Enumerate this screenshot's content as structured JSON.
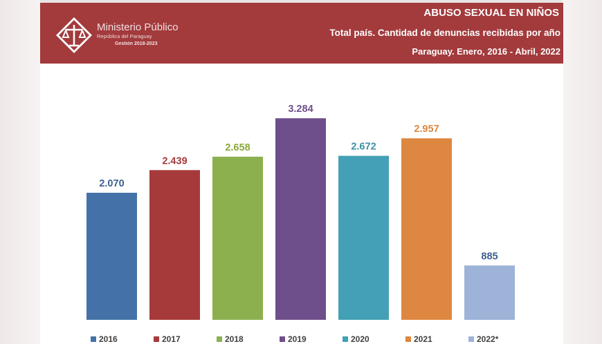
{
  "header": {
    "org_name": "Ministerio Público",
    "org_sub": "República del Paraguay",
    "org_term": "Gestión 2018-2023",
    "title": "ABUSO SEXUAL EN NIÑOS",
    "subtitle": "Total país. Cantidad de denuncias recibidas por año",
    "note": "Paraguay. Enero, 2016 - Abril, 2022",
    "colors": {
      "band": "#a33a3c"
    },
    "logo_icon": "scales-of-justice-icon"
  },
  "chart_data": {
    "type": "bar",
    "categories": [
      "2016",
      "2017",
      "2018",
      "2019",
      "2020",
      "2021",
      "2022*"
    ],
    "values": [
      2070,
      2439,
      2658,
      3284,
      2672,
      2957,
      885
    ],
    "value_labels": [
      "2.070",
      "2.439",
      "2.658",
      "3.284",
      "2.672",
      "2.957",
      "885"
    ],
    "colors": [
      "#4472a8",
      "#a63a3b",
      "#8db04f",
      "#6e4f8b",
      "#44a0b6",
      "#dd8740",
      "#9db3d8"
    ],
    "label_colors": [
      "#3c5f91",
      "#a63a3b",
      "#8aa83a",
      "#6e4f8b",
      "#3d8fa8",
      "#dd8740",
      "#3c5f91"
    ],
    "ylim": [
      0,
      3500
    ],
    "grid": false,
    "legend_position": "bottom"
  }
}
